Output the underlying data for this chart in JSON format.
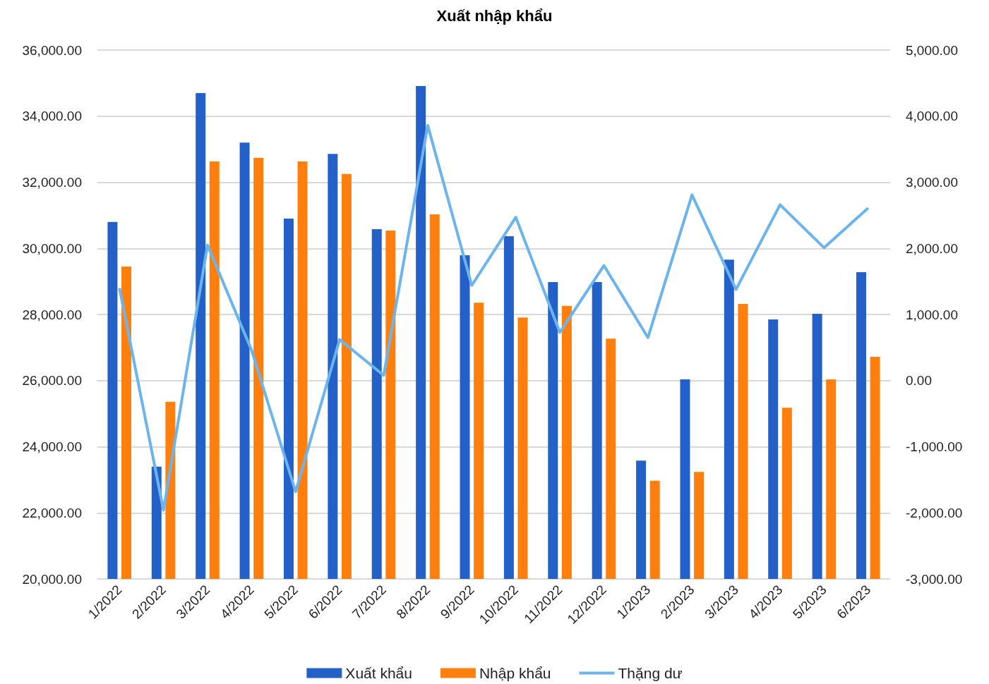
{
  "chart_data": {
    "type": "bar",
    "title": "Xuất nhập khẩu",
    "categories": [
      "1/2022",
      "2/2022",
      "3/2022",
      "4/2022",
      "5/2022",
      "6/2022",
      "7/2022",
      "8/2022",
      "9/2022",
      "10/2022",
      "11/2022",
      "12/2022",
      "1/2023",
      "2/2023",
      "3/2023",
      "4/2023",
      "5/2023",
      "6/2023"
    ],
    "series": [
      {
        "name": "Xuất khẩu",
        "color": "#2360c8",
        "values": [
          30800,
          23400,
          34700,
          33200,
          30900,
          32860,
          30580,
          34910,
          29790,
          30370,
          28980,
          28980,
          23580,
          26040,
          29660,
          27850,
          28020,
          29280
        ]
      },
      {
        "name": "Nhập khẩu",
        "color": "#ff7f0e",
        "values": [
          29450,
          25360,
          32630,
          32740,
          32630,
          32250,
          30540,
          31030,
          28360,
          27910,
          28260,
          27270,
          22970,
          23240,
          28320,
          25180,
          26040,
          26720
        ]
      },
      {
        "name": "Thặng dư",
        "type": "line",
        "axis": "y2",
        "color": "#6cb4ec",
        "values": [
          1400,
          -1960,
          2050,
          460,
          -1680,
          620,
          80,
          3860,
          1440,
          2470,
          730,
          1740,
          650,
          2810,
          1380,
          2660,
          2010,
          2610
        ]
      }
    ],
    "ylim": [
      20000,
      36000
    ],
    "yticks": [
      {
        "value": 20000,
        "label": "20,000.00"
      },
      {
        "value": 22000,
        "label": "22,000.00"
      },
      {
        "value": 24000,
        "label": "24,000.00"
      },
      {
        "value": 26000,
        "label": "26,000.00"
      },
      {
        "value": 28000,
        "label": "28,000.00"
      },
      {
        "value": 30000,
        "label": "30,000.00"
      },
      {
        "value": 32000,
        "label": "32,000.00"
      },
      {
        "value": 34000,
        "label": "34,000.00"
      },
      {
        "value": 36000,
        "label": "36,000.00"
      }
    ],
    "y2lim": [
      -3000,
      5000
    ],
    "y2ticks": [
      {
        "value": -3000,
        "label": "-3,000.00"
      },
      {
        "value": -2000,
        "label": "-2,000.00"
      },
      {
        "value": -1000,
        "label": "-1,000.00"
      },
      {
        "value": 0,
        "label": "0.00"
      },
      {
        "value": 1000,
        "label": "1,000.00"
      },
      {
        "value": 2000,
        "label": "2,000.00"
      },
      {
        "value": 3000,
        "label": "3,000.00"
      },
      {
        "value": 4000,
        "label": "4,000.00"
      },
      {
        "value": 5000,
        "label": "5,000.00"
      }
    ],
    "grid": "y",
    "legend": "bottom",
    "marker": "none",
    "line_style": "solid"
  }
}
